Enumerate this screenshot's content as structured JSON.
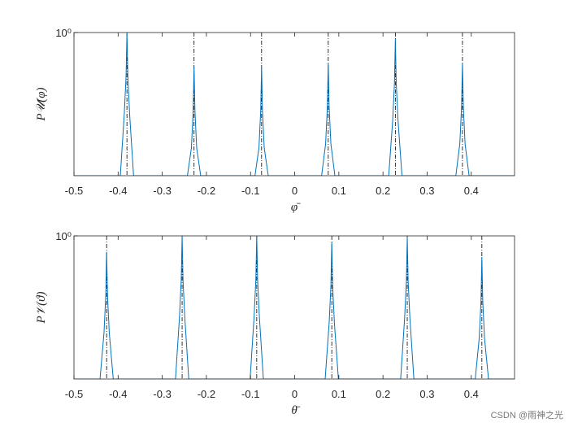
{
  "chart_data": [
    {
      "type": "line",
      "ylabel": "P𝒰(φ)",
      "xlabel": "φ̄",
      "log_y": true,
      "xlim": [
        -0.5,
        0.498
      ],
      "ylim": [
        0.001,
        1
      ],
      "xticks": [
        -0.5,
        -0.4,
        -0.3,
        -0.2,
        -0.1,
        0,
        0.1,
        0.2,
        0.3,
        0.4
      ],
      "yticks": [
        {
          "value": 1,
          "label": "10⁰"
        }
      ],
      "true_positions": [
        -0.38,
        -0.228,
        -0.075,
        0.076,
        0.228,
        0.38
      ],
      "series": [
        {
          "color": "#0072bd",
          "x": [
            -0.5,
            -0.395,
            -0.386,
            -0.382,
            -0.38,
            -0.378,
            -0.374,
            -0.365,
            -0.243,
            -0.234,
            -0.23,
            -0.228,
            -0.226,
            -0.222,
            -0.213,
            -0.09,
            -0.081,
            -0.077,
            -0.075,
            -0.073,
            -0.069,
            -0.06,
            0.061,
            0.07,
            0.074,
            0.076,
            0.078,
            0.082,
            0.091,
            0.213,
            0.222,
            0.226,
            0.228,
            0.23,
            0.234,
            0.243,
            0.365,
            0.374,
            0.378,
            0.38,
            0.382,
            0.386,
            0.395,
            0.498
          ],
          "values": [
            0.001,
            0.001,
            0.02,
            0.12,
            1,
            0.12,
            0.02,
            0.001,
            0.001,
            0.0038,
            0.0228,
            0.19,
            0.0228,
            0.0038,
            0.001,
            0.001,
            0.0038,
            0.0228,
            0.19,
            0.0228,
            0.0038,
            0.001,
            0.001,
            0.0046,
            0.0276,
            0.23,
            0.0276,
            0.0046,
            0.001,
            0.001,
            0.0146,
            0.0876,
            0.73,
            0.0876,
            0.0146,
            0.001,
            0.001,
            0.0046,
            0.0276,
            0.23,
            0.0276,
            0.0046,
            0.001,
            0.001
          ]
        }
      ]
    },
    {
      "type": "line",
      "ylabel": "P𝒱(ϑ)",
      "xlabel": "θ̄",
      "log_y": true,
      "xlim": [
        -0.5,
        0.498
      ],
      "ylim": [
        0.001,
        1
      ],
      "xticks": [
        -0.5,
        -0.4,
        -0.3,
        -0.2,
        -0.1,
        0,
        0.1,
        0.2,
        0.3,
        0.4
      ],
      "yticks": [
        {
          "value": 1,
          "label": "10⁰"
        }
      ],
      "true_positions": [
        -0.426,
        -0.255,
        -0.086,
        0.084,
        0.255,
        0.424
      ],
      "series": [
        {
          "color": "#0072bd",
          "x": [
            -0.5,
            -0.441,
            -0.432,
            -0.428,
            -0.426,
            -0.424,
            -0.42,
            -0.411,
            -0.27,
            -0.261,
            -0.257,
            -0.255,
            -0.253,
            -0.249,
            -0.24,
            -0.101,
            -0.092,
            -0.088,
            -0.086,
            -0.084,
            -0.08,
            -0.071,
            0.069,
            0.078,
            0.082,
            0.084,
            0.086,
            0.09,
            0.099,
            0.24,
            0.249,
            0.253,
            0.255,
            0.257,
            0.261,
            0.27,
            0.409,
            0.418,
            0.422,
            0.424,
            0.426,
            0.43,
            0.439,
            0.498
          ],
          "values": [
            0.001,
            0.001,
            0.0092,
            0.0552,
            0.46,
            0.0552,
            0.0092,
            0.001,
            0.001,
            0.02,
            0.12,
            1,
            0.12,
            0.02,
            0.001,
            0.001,
            0.02,
            0.12,
            1,
            0.12,
            0.02,
            0.001,
            0.001,
            0.0146,
            0.0876,
            0.73,
            0.0876,
            0.0146,
            0.001,
            0.001,
            0.0186,
            0.1116,
            0.93,
            0.1116,
            0.0186,
            0.001,
            0.001,
            0.0072,
            0.0432,
            0.36,
            0.0432,
            0.0072,
            0.001,
            0.001
          ]
        }
      ]
    }
  ],
  "watermark": "CSDN @雨神之光"
}
